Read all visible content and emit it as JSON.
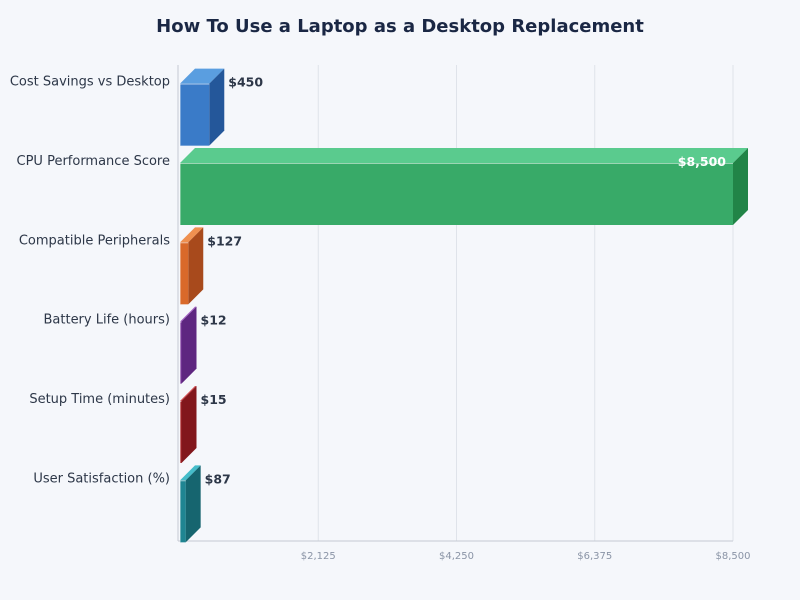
{
  "chart_data": {
    "type": "bar",
    "orientation": "horizontal",
    "style": "3d",
    "title": "How To Use a Laptop as a Desktop Replacement",
    "xlabel": "",
    "ylabel": "",
    "xlim": [
      0,
      8500
    ],
    "grid": true,
    "legend": null,
    "categories": [
      "Cost Savings vs Desktop",
      "CPU Performance Score",
      "Compatible Peripherals",
      "Battery Life (hours)",
      "Setup Time (minutes)",
      "User Satisfaction (%)"
    ],
    "values": [
      450,
      8500,
      127,
      12,
      15,
      87
    ],
    "value_labels": [
      "$450",
      "$8,500",
      "$127",
      "$12",
      "$15",
      "$87"
    ],
    "x_ticks": [
      2125,
      4250,
      6375,
      8500
    ],
    "x_tick_labels": [
      "$2,125",
      "$4,250",
      "$6,375",
      "$8,500"
    ],
    "colors": [
      {
        "front": "#3a7bc8",
        "top": "#5a9ee0",
        "side": "#24579a"
      },
      {
        "front": "#38aa68",
        "top": "#5acb8e",
        "side": "#218447"
      },
      {
        "front": "#d9692a",
        "top": "#ef9050",
        "side": "#a84a1c"
      },
      {
        "front": "#7e3aa0",
        "top": "#a561c6",
        "side": "#5e2680"
      },
      {
        "front": "#a82429",
        "top": "#d2454a",
        "side": "#82171c"
      },
      {
        "front": "#1f8592",
        "top": "#45bdca",
        "side": "#16656f"
      }
    ]
  }
}
